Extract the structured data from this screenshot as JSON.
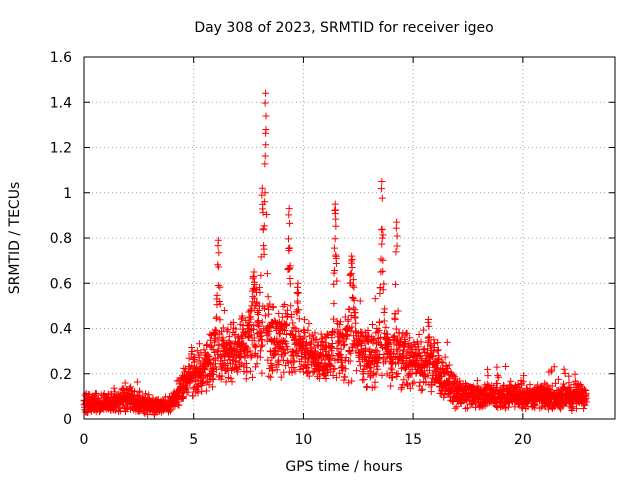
{
  "chart_data": {
    "type": "scatter",
    "title": "Day 308 of 2023, SRMTID for receiver igeo",
    "xlabel": "GPS time / hours",
    "ylabel": "SRMTID / TECUs",
    "xlim": [
      0,
      24.2
    ],
    "ylim": [
      0,
      1.6
    ],
    "x_ticks": [
      0,
      5,
      10,
      15,
      20
    ],
    "x_tick_labels": [
      "0",
      "5",
      "10",
      "15",
      "20"
    ],
    "y_ticks": [
      0,
      0.2,
      0.4,
      0.6,
      0.8,
      1.0,
      1.2,
      1.4,
      1.6
    ],
    "y_tick_labels": [
      "0",
      "0.2",
      "0.4",
      "0.6",
      "0.8",
      "1",
      "1.2",
      "1.4",
      "1.6"
    ],
    "grid": true,
    "marker": "plus",
    "color": "#ff0000",
    "x_start": 0,
    "x_end": 22.9,
    "baseline_profile": [
      {
        "x": 0.0,
        "median": 0.07,
        "spread": 0.03
      },
      {
        "x": 1.0,
        "median": 0.07,
        "spread": 0.03
      },
      {
        "x": 2.0,
        "median": 0.09,
        "spread": 0.04
      },
      {
        "x": 3.0,
        "median": 0.06,
        "spread": 0.03
      },
      {
        "x": 3.8,
        "median": 0.05,
        "spread": 0.02
      },
      {
        "x": 4.5,
        "median": 0.15,
        "spread": 0.05
      },
      {
        "x": 5.0,
        "median": 0.2,
        "spread": 0.07
      },
      {
        "x": 5.5,
        "median": 0.24,
        "spread": 0.08
      },
      {
        "x": 6.0,
        "median": 0.28,
        "spread": 0.1
      },
      {
        "x": 7.0,
        "median": 0.3,
        "spread": 0.1
      },
      {
        "x": 8.0,
        "median": 0.34,
        "spread": 0.12
      },
      {
        "x": 9.0,
        "median": 0.36,
        "spread": 0.12
      },
      {
        "x": 10.0,
        "median": 0.29,
        "spread": 0.08
      },
      {
        "x": 11.0,
        "median": 0.28,
        "spread": 0.08
      },
      {
        "x": 12.0,
        "median": 0.32,
        "spread": 0.12
      },
      {
        "x": 13.0,
        "median": 0.28,
        "spread": 0.1
      },
      {
        "x": 14.0,
        "median": 0.28,
        "spread": 0.1
      },
      {
        "x": 15.0,
        "median": 0.25,
        "spread": 0.08
      },
      {
        "x": 16.0,
        "median": 0.22,
        "spread": 0.08
      },
      {
        "x": 17.0,
        "median": 0.12,
        "spread": 0.05
      },
      {
        "x": 18.0,
        "median": 0.1,
        "spread": 0.04
      },
      {
        "x": 19.0,
        "median": 0.1,
        "spread": 0.04
      },
      {
        "x": 20.0,
        "median": 0.1,
        "spread": 0.04
      },
      {
        "x": 21.0,
        "median": 0.1,
        "spread": 0.04
      },
      {
        "x": 22.0,
        "median": 0.1,
        "spread": 0.04
      },
      {
        "x": 22.9,
        "median": 0.1,
        "spread": 0.04
      }
    ],
    "spikes": [
      {
        "x_start": 5.95,
        "x_end": 6.3,
        "peak": 0.79
      },
      {
        "x_start": 7.4,
        "x_end": 8.1,
        "peak": 0.65
      },
      {
        "x_start": 7.9,
        "x_end": 8.35,
        "peak": 1.02
      },
      {
        "x_start": 8.1,
        "x_end": 8.45,
        "peak": 1.44
      },
      {
        "x_start": 9.2,
        "x_end": 9.5,
        "peak": 0.93
      },
      {
        "x_start": 9.6,
        "x_end": 9.9,
        "peak": 0.6
      },
      {
        "x_start": 11.3,
        "x_end": 11.6,
        "peak": 0.95
      },
      {
        "x_start": 11.9,
        "x_end": 12.5,
        "peak": 0.72
      },
      {
        "x_start": 13.4,
        "x_end": 13.75,
        "peak": 1.05
      },
      {
        "x_start": 14.1,
        "x_end": 14.4,
        "peak": 0.87
      },
      {
        "x_start": 15.6,
        "x_end": 15.8,
        "peak": 0.44
      }
    ]
  }
}
